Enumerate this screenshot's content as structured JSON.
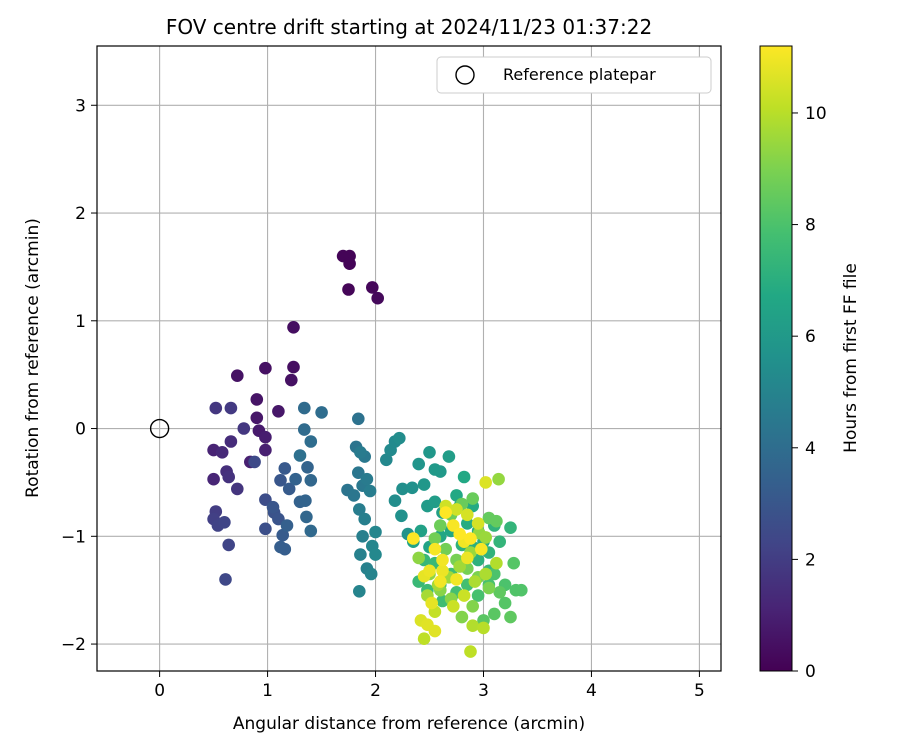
{
  "chart_data": {
    "type": "scatter",
    "title": "FOV centre drift starting at 2024/11/23 01:37:22",
    "xlabel": "Angular distance from reference (arcmin)",
    "ylabel": "Rotation from reference (arcmin)",
    "xlim": [
      -0.58,
      5.2
    ],
    "ylim": [
      -2.25,
      3.55
    ],
    "xticks": [
      0,
      1,
      2,
      3,
      4,
      5
    ],
    "yticks": [
      -2,
      -1,
      0,
      1,
      2,
      3
    ],
    "xtick_labels": [
      "0",
      "1",
      "2",
      "3",
      "4",
      "5"
    ],
    "ytick_labels": [
      "−2",
      "−1",
      "0",
      "1",
      "2",
      "3"
    ],
    "grid": true,
    "legend": {
      "position": "top-right",
      "label": "Reference platepar"
    },
    "reference_point": {
      "x": 0,
      "y": 0
    },
    "colorbar": {
      "label": "Hours from first FF file",
      "colormap": "viridis",
      "range": [
        0,
        11.2
      ],
      "ticks": [
        0,
        2,
        4,
        6,
        8,
        10
      ],
      "tick_labels": [
        "0",
        "2",
        "4",
        "6",
        "8",
        "10"
      ]
    },
    "points": [
      [
        1.7,
        1.6,
        0.1
      ],
      [
        1.76,
        1.6,
        0.1
      ],
      [
        1.76,
        1.53,
        0.1
      ],
      [
        1.75,
        1.29,
        0.15
      ],
      [
        1.97,
        1.31,
        0.2
      ],
      [
        2.02,
        1.21,
        0.25
      ],
      [
        1.24,
        0.94,
        0.4
      ],
      [
        1.24,
        0.57,
        0.45
      ],
      [
        0.98,
        0.56,
        0.5
      ],
      [
        1.22,
        0.45,
        0.5
      ],
      [
        0.72,
        0.49,
        0.55
      ],
      [
        0.9,
        0.27,
        0.6
      ],
      [
        1.1,
        0.16,
        0.7
      ],
      [
        0.9,
        0.1,
        0.7
      ],
      [
        0.92,
        -0.02,
        0.8
      ],
      [
        0.98,
        -0.08,
        0.9
      ],
      [
        0.84,
        -0.31,
        1.0
      ],
      [
        0.98,
        -0.2,
        1.0
      ],
      [
        0.5,
        -0.2,
        1.1
      ],
      [
        0.5,
        -0.47,
        1.2
      ],
      [
        0.58,
        -0.22,
        1.3
      ],
      [
        0.66,
        -0.12,
        1.4
      ],
      [
        0.62,
        -0.4,
        1.5
      ],
      [
        0.64,
        -0.45,
        1.6
      ],
      [
        0.72,
        -0.56,
        1.7
      ],
      [
        0.78,
        0.0,
        1.8
      ],
      [
        0.52,
        0.19,
        1.8
      ],
      [
        0.66,
        0.19,
        1.9
      ],
      [
        0.52,
        -0.77,
        2.0
      ],
      [
        0.5,
        -0.84,
        2.1
      ],
      [
        0.54,
        -0.9,
        2.2
      ],
      [
        0.6,
        -0.87,
        2.3
      ],
      [
        0.64,
        -1.08,
        2.3
      ],
      [
        0.61,
        -1.4,
        2.4
      ],
      [
        0.88,
        -0.31,
        2.5
      ],
      [
        0.98,
        -0.66,
        2.6
      ],
      [
        0.98,
        -0.93,
        2.7
      ],
      [
        1.06,
        -0.78,
        2.8
      ],
      [
        1.1,
        -0.84,
        2.9
      ],
      [
        1.05,
        -0.73,
        3.0
      ],
      [
        1.12,
        -0.48,
        3.0
      ],
      [
        1.16,
        -0.37,
        3.1
      ],
      [
        1.2,
        -0.56,
        3.2
      ],
      [
        1.14,
        -0.99,
        3.2
      ],
      [
        1.12,
        -1.1,
        3.3
      ],
      [
        1.16,
        -1.12,
        3.3
      ],
      [
        1.18,
        -0.9,
        3.4
      ],
      [
        1.26,
        -0.47,
        3.5
      ],
      [
        1.3,
        -0.68,
        3.5
      ],
      [
        1.35,
        -0.67,
        3.6
      ],
      [
        1.37,
        -0.36,
        3.6
      ],
      [
        1.4,
        -0.48,
        3.7
      ],
      [
        1.36,
        -0.82,
        3.7
      ],
      [
        1.4,
        -0.95,
        3.8
      ],
      [
        1.34,
        -0.01,
        3.9
      ],
      [
        1.34,
        0.19,
        3.9
      ],
      [
        1.4,
        -0.12,
        4.0
      ],
      [
        1.5,
        0.15,
        4.0
      ],
      [
        1.3,
        -0.25,
        4.1
      ],
      [
        1.84,
        0.09,
        4.2
      ],
      [
        1.82,
        -0.17,
        4.3
      ],
      [
        1.74,
        -0.57,
        4.3
      ],
      [
        1.8,
        -0.62,
        4.4
      ],
      [
        1.84,
        -0.41,
        4.4
      ],
      [
        1.88,
        -0.53,
        4.5
      ],
      [
        1.9,
        -0.26,
        4.5
      ],
      [
        1.86,
        -0.22,
        4.6
      ],
      [
        1.92,
        -0.47,
        4.6
      ],
      [
        1.95,
        -0.58,
        4.7
      ],
      [
        1.85,
        -0.75,
        4.7
      ],
      [
        1.9,
        -0.84,
        4.8
      ],
      [
        1.88,
        -1.0,
        4.8
      ],
      [
        1.86,
        -1.17,
        4.9
      ],
      [
        1.92,
        -1.3,
        4.9
      ],
      [
        1.96,
        -1.35,
        5.0
      ],
      [
        1.85,
        -1.51,
        5.0
      ],
      [
        2.0,
        -0.96,
        5.1
      ],
      [
        1.97,
        -1.09,
        5.1
      ],
      [
        2.0,
        -1.17,
        5.2
      ],
      [
        2.1,
        -0.29,
        5.2
      ],
      [
        2.14,
        -0.2,
        5.3
      ],
      [
        2.18,
        -0.12,
        5.3
      ],
      [
        2.22,
        -0.09,
        5.4
      ],
      [
        2.18,
        -0.67,
        5.4
      ],
      [
        2.25,
        -0.56,
        5.5
      ],
      [
        2.34,
        -0.55,
        5.6
      ],
      [
        2.24,
        -0.81,
        5.6
      ],
      [
        2.3,
        -0.98,
        5.7
      ],
      [
        2.4,
        -0.33,
        5.8
      ],
      [
        2.5,
        -0.22,
        5.9
      ],
      [
        2.45,
        -0.52,
        5.9
      ],
      [
        2.55,
        -0.38,
        6.0
      ],
      [
        2.6,
        -0.4,
        6.0
      ],
      [
        2.48,
        -0.72,
        6.1
      ],
      [
        2.55,
        -0.68,
        6.2
      ],
      [
        2.68,
        -0.26,
        6.2
      ],
      [
        2.62,
        -0.78,
        6.3
      ],
      [
        2.42,
        -0.95,
        6.4
      ],
      [
        2.35,
        -1.05,
        6.5
      ],
      [
        2.5,
        -1.1,
        6.5
      ],
      [
        2.6,
        -1.0,
        6.6
      ],
      [
        2.7,
        -0.95,
        6.6
      ],
      [
        2.75,
        -0.62,
        6.7
      ],
      [
        2.82,
        -0.45,
        6.7
      ],
      [
        2.78,
        -0.72,
        6.8
      ],
      [
        2.9,
        -0.72,
        6.8
      ],
      [
        2.85,
        -0.88,
        6.9
      ],
      [
        2.95,
        -0.95,
        6.9
      ],
      [
        3.0,
        -1.05,
        7.0
      ],
      [
        2.9,
        -1.1,
        7.0
      ],
      [
        2.8,
        -1.08,
        7.1
      ],
      [
        2.95,
        -1.22,
        7.1
      ],
      [
        3.05,
        -1.15,
        7.2
      ],
      [
        3.1,
        -0.9,
        7.2
      ],
      [
        3.25,
        -0.92,
        7.3
      ],
      [
        3.15,
        -1.05,
        7.3
      ],
      [
        3.05,
        -1.32,
        7.4
      ],
      [
        2.45,
        -1.22,
        7.4
      ],
      [
        2.55,
        -1.25,
        7.5
      ],
      [
        2.4,
        -1.42,
        7.5
      ],
      [
        2.48,
        -1.5,
        7.6
      ],
      [
        2.6,
        -1.45,
        7.6
      ],
      [
        2.7,
        -1.35,
        7.7
      ],
      [
        2.62,
        -1.6,
        7.7
      ],
      [
        2.75,
        -1.52,
        7.8
      ],
      [
        2.85,
        -1.45,
        7.8
      ],
      [
        2.95,
        -1.55,
        7.9
      ],
      [
        3.05,
        -1.45,
        7.9
      ],
      [
        3.1,
        -1.35,
        8.0
      ],
      [
        3.2,
        -1.45,
        8.0
      ],
      [
        3.3,
        -1.5,
        8.1
      ],
      [
        3.35,
        -1.5,
        8.1
      ],
      [
        3.28,
        -1.25,
        8.2
      ],
      [
        3.2,
        -1.62,
        8.2
      ],
      [
        3.1,
        -1.72,
        8.3
      ],
      [
        3.0,
        -1.78,
        8.3
      ],
      [
        3.25,
        -1.75,
        8.4
      ],
      [
        3.15,
        -1.52,
        8.4
      ],
      [
        3.05,
        -0.83,
        8.5
      ],
      [
        3.12,
        -0.86,
        8.5
      ],
      [
        2.9,
        -0.65,
        8.6
      ],
      [
        2.8,
        -0.7,
        8.6
      ],
      [
        2.7,
        -0.8,
        8.7
      ],
      [
        2.6,
        -0.9,
        8.7
      ],
      [
        2.55,
        -1.02,
        8.8
      ],
      [
        2.65,
        -1.12,
        8.8
      ],
      [
        2.75,
        -1.22,
        8.9
      ],
      [
        2.85,
        -1.3,
        8.9
      ],
      [
        2.95,
        -1.38,
        9.0
      ],
      [
        3.05,
        -1.48,
        9.0
      ],
      [
        2.9,
        -1.65,
        9.1
      ],
      [
        2.8,
        -1.75,
        9.1
      ],
      [
        2.7,
        -1.58,
        9.2
      ],
      [
        2.6,
        -1.5,
        9.2
      ],
      [
        2.5,
        -1.35,
        9.3
      ],
      [
        2.4,
        -1.2,
        9.3
      ],
      [
        3.14,
        -0.47,
        9.4
      ],
      [
        2.96,
        -0.97,
        9.4
      ],
      [
        3.02,
        -1.01,
        9.5
      ],
      [
        2.88,
        -1.15,
        9.5
      ],
      [
        2.78,
        -1.28,
        9.6
      ],
      [
        2.68,
        -1.38,
        9.6
      ],
      [
        2.58,
        -1.45,
        9.7
      ],
      [
        2.48,
        -1.55,
        9.7
      ],
      [
        2.92,
        -1.42,
        9.8
      ],
      [
        3.02,
        -1.35,
        9.8
      ],
      [
        3.12,
        -1.25,
        9.9
      ],
      [
        2.9,
        -1.83,
        9.9
      ],
      [
        3.0,
        -1.85,
        10.0
      ],
      [
        2.88,
        -2.07,
        10.1
      ],
      [
        2.45,
        -1.95,
        10.1
      ],
      [
        2.55,
        -1.7,
        10.2
      ],
      [
        2.72,
        -1.65,
        10.3
      ],
      [
        2.82,
        -1.55,
        10.3
      ],
      [
        2.65,
        -0.72,
        10.4
      ],
      [
        2.75,
        -0.75,
        10.4
      ],
      [
        2.85,
        -0.8,
        10.5
      ],
      [
        2.95,
        -0.88,
        10.5
      ],
      [
        3.02,
        -0.5,
        10.6
      ],
      [
        2.42,
        -1.78,
        10.6
      ],
      [
        2.48,
        -1.82,
        10.7
      ],
      [
        2.55,
        -1.88,
        10.7
      ],
      [
        2.52,
        -1.62,
        10.8
      ],
      [
        2.45,
        -1.37,
        10.8
      ],
      [
        2.5,
        -1.32,
        10.9
      ],
      [
        2.62,
        -1.32,
        10.9
      ],
      [
        2.62,
        -1.22,
        11.0
      ],
      [
        2.82,
        -1.05,
        11.0
      ],
      [
        2.98,
        -1.12,
        11.1
      ],
      [
        2.72,
        -0.9,
        11.1
      ],
      [
        2.65,
        -0.78,
        11.2
      ],
      [
        2.78,
        -0.98,
        11.2
      ],
      [
        2.88,
        -1.02,
        11.2
      ],
      [
        2.35,
        -1.02,
        11.2
      ],
      [
        2.55,
        -1.12,
        11.1
      ],
      [
        2.6,
        -1.42,
        11.0
      ],
      [
        2.75,
        -1.4,
        11.0
      ],
      [
        2.85,
        -1.2,
        10.9
      ]
    ]
  }
}
